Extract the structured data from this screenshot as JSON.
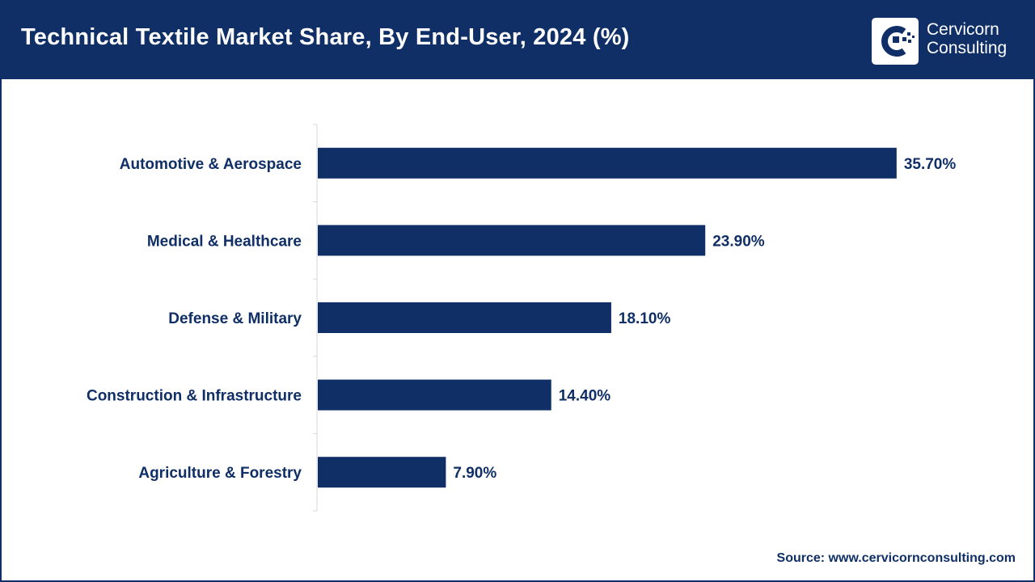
{
  "header": {
    "title": "Technical Textile Market Share, By End-User, 2024 (%)"
  },
  "logo": {
    "line1": "Cervicorn",
    "line2": "Consulting",
    "icon": "cervicorn-logo-icon"
  },
  "colors": {
    "brand": "#0f2f66",
    "bar": "#0f2f66",
    "axis": "#d9d9d9",
    "background": "#ffffff"
  },
  "chart_data": {
    "type": "bar",
    "orientation": "horizontal",
    "title": "Technical Textile Market Share, By End-User, 2024 (%)",
    "categories": [
      "Automotive & Aerospace",
      "Medical & Healthcare",
      "Defense & Military",
      "Construction & Infrastructure",
      "Agriculture & Forestry"
    ],
    "values": [
      35.7,
      23.9,
      18.1,
      14.4,
      7.9
    ],
    "data_labels": [
      "35.70%",
      "23.90%",
      "18.10%",
      "14.40%",
      "7.90%"
    ],
    "xlabel": "",
    "ylabel": "",
    "xlim": [
      0,
      39
    ],
    "grid": false,
    "legend": "none"
  },
  "footer": {
    "source": "Source: www.cervicornconsulting.com"
  }
}
